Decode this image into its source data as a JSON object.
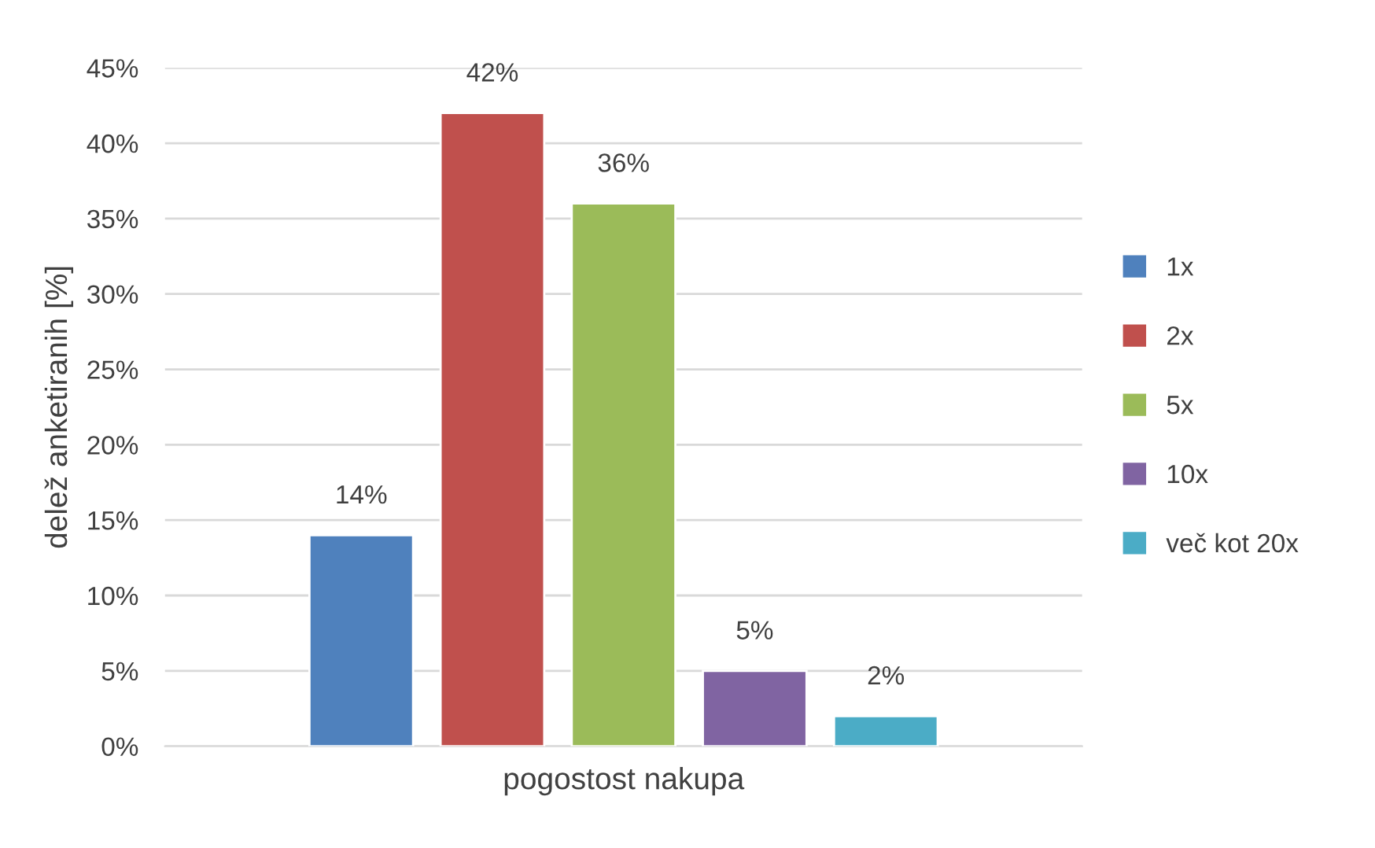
{
  "chart_data": {
    "type": "bar",
    "xlabel": "pogostost nakupa",
    "ylabel": "delež anketiranih [%]",
    "categories": [
      null
    ],
    "series": [
      {
        "name": "1x",
        "color": "#4f81bd",
        "values": [
          14
        ],
        "value_labels": [
          "14%"
        ]
      },
      {
        "name": "2x",
        "color": "#c0504d",
        "values": [
          42
        ],
        "value_labels": [
          "42%"
        ]
      },
      {
        "name": "5x",
        "color": "#9bbb59",
        "values": [
          36
        ],
        "value_labels": [
          "36%"
        ]
      },
      {
        "name": "10x",
        "color": "#8064a2",
        "values": [
          5
        ],
        "value_labels": [
          "5%"
        ]
      },
      {
        "name": "več kot 20x",
        "color": "#4bacc6",
        "values": [
          2
        ],
        "value_labels": [
          "2%"
        ]
      }
    ],
    "ylim": [
      0,
      45
    ],
    "yticks": [
      {
        "value": 0,
        "label": "0%"
      },
      {
        "value": 5,
        "label": "5%"
      },
      {
        "value": 10,
        "label": "10%"
      },
      {
        "value": 15,
        "label": "15%"
      },
      {
        "value": 20,
        "label": "20%"
      },
      {
        "value": 25,
        "label": "25%"
      },
      {
        "value": 30,
        "label": "30%"
      },
      {
        "value": 35,
        "label": "35%"
      },
      {
        "value": 40,
        "label": "40%"
      },
      {
        "value": 45,
        "label": "45%"
      }
    ],
    "grid": "y",
    "legend": "right"
  }
}
